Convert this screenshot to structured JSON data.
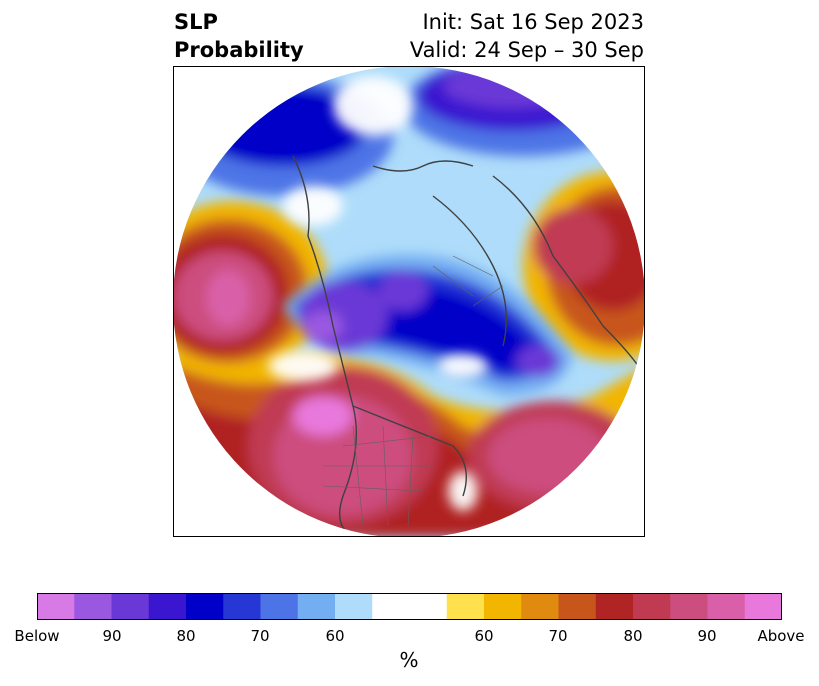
{
  "title": {
    "left_line1": "SLP",
    "left_line2": "Probability",
    "right_line1": "Init: Sat 16 Sep 2023",
    "right_line2": "Valid: 24 Sep – 30 Sep"
  },
  "colorbar": {
    "unit_label": "%",
    "colors": [
      "#d77ae6",
      "#9a58e0",
      "#6a38d6",
      "#3a16d0",
      "#0000c8",
      "#2637d6",
      "#4d74e6",
      "#74aef2",
      "#aedcfa",
      "#ffffff",
      "#ffffff",
      "#ffe14d",
      "#f2b500",
      "#e08a10",
      "#c8561a",
      "#b02424",
      "#c03a52",
      "#cc4e7e",
      "#d960a8",
      "#e878dc"
    ],
    "ticks": [
      "Below",
      "90",
      "80",
      "70",
      "60",
      "60",
      "70",
      "80",
      "90",
      "Above"
    ]
  },
  "map": {
    "projection": "north-polar-stereographic",
    "field": "sea level pressure probability"
  }
}
